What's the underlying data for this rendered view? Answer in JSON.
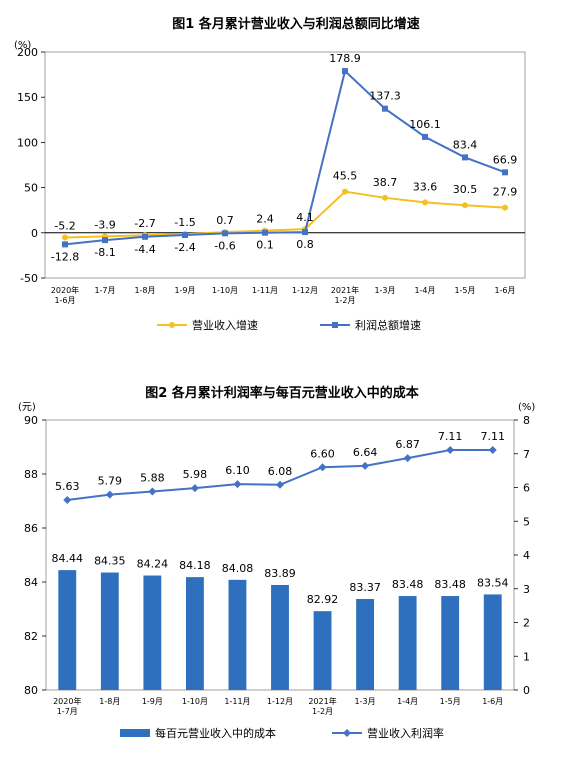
{
  "colors": {
    "revenue": "#f5c022",
    "profit": "#4472c4",
    "bar": "#2e70bd",
    "line2": "#4472c4",
    "axis": "#000000"
  },
  "chart_data": [
    {
      "type": "line",
      "title": "图1  各月累计营业收入与利润总额同比增速",
      "unit_left": "(%)",
      "categories": [
        [
          "2020年",
          "1-6月"
        ],
        [
          "1-7月"
        ],
        [
          "1-8月"
        ],
        [
          "1-9月"
        ],
        [
          "1-10月"
        ],
        [
          "1-11月"
        ],
        [
          "1-12月"
        ],
        [
          "2021年",
          "1-2月"
        ],
        [
          "1-3月"
        ],
        [
          "1-4月"
        ],
        [
          "1-5月"
        ],
        [
          "1-6月"
        ]
      ],
      "ylim": [
        -50,
        200
      ],
      "yticks": [
        -50,
        0,
        50,
        100,
        150,
        200
      ],
      "series": [
        {
          "name": "营业收入增速",
          "values": [
            -5.2,
            -3.9,
            -2.7,
            -1.5,
            0.7,
            2.4,
            4.1,
            45.5,
            38.7,
            33.6,
            30.5,
            27.9
          ],
          "labels": [
            "-5.2",
            "-3.9",
            "-2.7",
            "-1.5",
            "0.7",
            "2.4",
            "4.1",
            "45.5",
            "38.7",
            "33.6",
            "30.5",
            "27.9"
          ]
        },
        {
          "name": "利润总额增速",
          "values": [
            -12.8,
            -8.1,
            -4.4,
            -2.4,
            -0.6,
            0.1,
            0.8,
            178.9,
            137.3,
            106.1,
            83.4,
            66.9
          ],
          "labels": [
            "-12.8",
            "-8.1",
            "-4.4",
            "-2.4",
            "-0.6",
            "0.1",
            "0.8",
            "178.9",
            "137.3",
            "106.1",
            "83.4",
            "66.9"
          ]
        }
      ],
      "legend": [
        "营业收入增速",
        "利润总额增速"
      ]
    },
    {
      "type": "bar",
      "title": "图2  各月累计利润率与每百元营业收入中的成本",
      "unit_left": "(元)",
      "unit_right": "(%)",
      "categories": [
        [
          "2020年",
          "1-7月"
        ],
        [
          "1-8月"
        ],
        [
          "1-9月"
        ],
        [
          "1-10月"
        ],
        [
          "1-11月"
        ],
        [
          "1-12月"
        ],
        [
          "2021年",
          "1-2月"
        ],
        [
          "1-3月"
        ],
        [
          "1-4月"
        ],
        [
          "1-5月"
        ],
        [
          "1-6月"
        ]
      ],
      "ylim": [
        80,
        90
      ],
      "yticks": [
        80,
        82,
        84,
        86,
        88,
        90
      ],
      "y2lim": [
        0,
        8
      ],
      "y2ticks": [
        0,
        1,
        2,
        3,
        4,
        5,
        6,
        7,
        8
      ],
      "series": [
        {
          "name": "每百元营业收入中的成本",
          "type": "bar",
          "axis": "left",
          "values": [
            84.44,
            84.35,
            84.24,
            84.18,
            84.08,
            83.89,
            82.92,
            83.37,
            83.48,
            83.48,
            83.54
          ],
          "labels": [
            "84.44",
            "84.35",
            "84.24",
            "84.18",
            "84.08",
            "83.89",
            "82.92",
            "83.37",
            "83.48",
            "83.48",
            "83.54"
          ]
        },
        {
          "name": "营业收入利润率",
          "type": "line",
          "axis": "right",
          "values": [
            5.63,
            5.79,
            5.88,
            5.98,
            6.1,
            6.08,
            6.6,
            6.64,
            6.87,
            7.11,
            7.11
          ],
          "labels": [
            "5.63",
            "5.79",
            "5.88",
            "5.98",
            "6.10",
            "6.08",
            "6.60",
            "6.64",
            "6.87",
            "7.11",
            "7.11"
          ]
        }
      ],
      "legend": [
        "每百元营业收入中的成本",
        "营业收入利润率"
      ]
    }
  ]
}
